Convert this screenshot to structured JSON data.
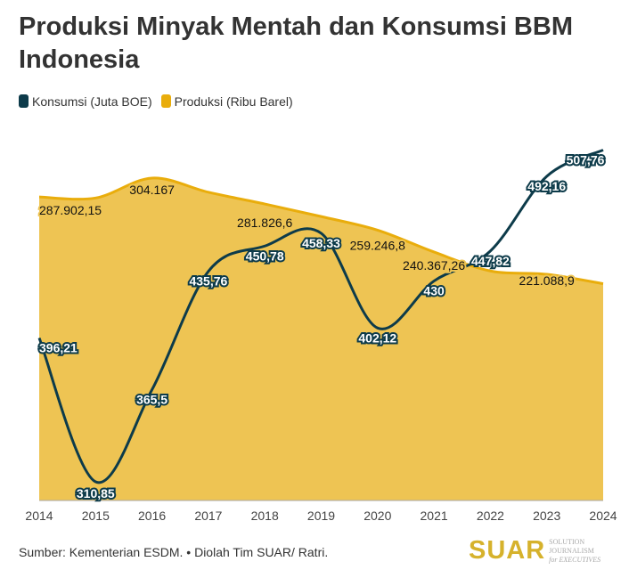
{
  "chart_data": {
    "type": "area",
    "title": "Produksi Minyak Mentah dan Konsumsi BBM Indonesia",
    "x": [
      2014,
      2015,
      2016,
      2017,
      2018,
      2019,
      2020,
      2021,
      2022,
      2023,
      2024
    ],
    "series": [
      {
        "name": "Konsumsi (Juta BOE)",
        "type": "line",
        "color": "#0d3b4a",
        "values": [
          396.21,
          310.85,
          365.5,
          435.76,
          450.78,
          458.33,
          402.12,
          430,
          447.82,
          492.16,
          507.76
        ],
        "labels": [
          "396,21",
          "310,85",
          "365,5",
          "435,76",
          "450,78",
          "458,33",
          "402,12",
          "430",
          "447,82",
          "492,16",
          "507,76"
        ]
      },
      {
        "name": "Produksi (Ribu Barel)",
        "type": "area",
        "color": "#e9ad0c",
        "values": [
          287902.15,
          287000,
          304167,
          292000,
          281826.6,
          271000,
          259246.8,
          240367.26,
          224000,
          221088.9,
          213000
        ],
        "labels": [
          "287.902,15",
          null,
          "304.167",
          null,
          "281.826,6",
          null,
          "259.246,8",
          "240.367,26",
          null,
          "221.088,9",
          null
        ]
      }
    ]
  },
  "source": "Sumber: Kementerian ESDM. • Diolah Tim SUAR/ Ratri.",
  "logo": {
    "name": "SUAR",
    "tag1": "SOLUTION JOURNALISM",
    "tag2": "for EXECUTIVES"
  }
}
